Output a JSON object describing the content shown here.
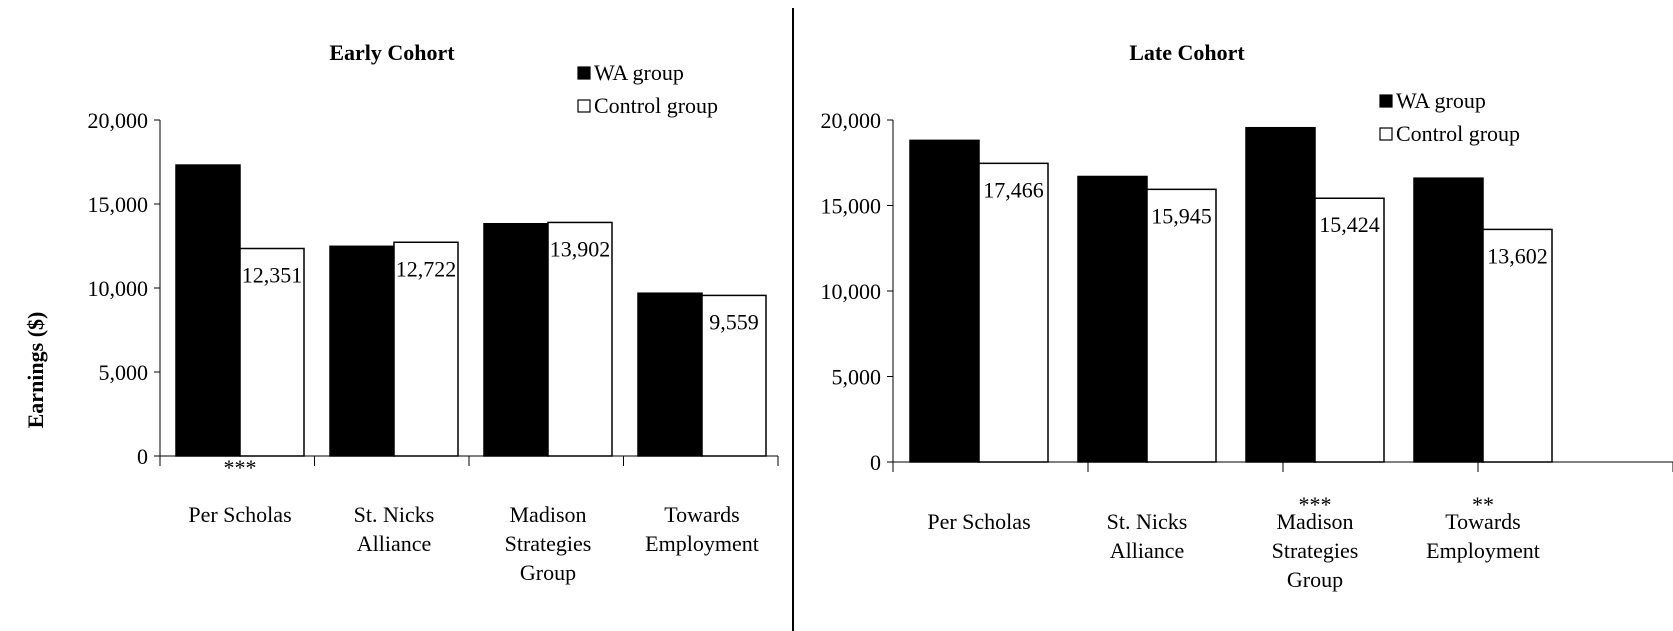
{
  "ylabel": "Earnings ($)",
  "legend": {
    "wa_label": "WA group",
    "control_label": "Control group",
    "wa_color": "#000000",
    "control_color": "#ffffff"
  },
  "chart_data": [
    {
      "type": "bar",
      "title": "Early Cohort",
      "ylabel": "Earnings ($)",
      "ylim": [
        0,
        20000
      ],
      "yticks": [
        "0",
        "5,000",
        "10,000",
        "15,000",
        "20,000"
      ],
      "categories": [
        "Per Scholas",
        "St. Nicks Alliance",
        "Madison Strategies Group",
        "Towards Employment"
      ],
      "category_lines": [
        [
          "Per Scholas"
        ],
        [
          "St. Nicks",
          "Alliance"
        ],
        [
          "Madison",
          "Strategies",
          "Group"
        ],
        [
          "Towards",
          "Employment"
        ]
      ],
      "significance": [
        "***",
        "",
        "",
        ""
      ],
      "series": [
        {
          "name": "WA group",
          "values": [
            17318,
            12482,
            13825,
            9690
          ],
          "labels": [
            "17,318",
            "12,482",
            "13,825",
            "9,690"
          ]
        },
        {
          "name": "Control group",
          "values": [
            12351,
            12722,
            13902,
            9559
          ],
          "labels": [
            "12,351",
            "12,722",
            "13,902",
            "9,559"
          ]
        }
      ]
    },
    {
      "type": "bar",
      "title": "Late Cohort",
      "ylim": [
        0,
        20000
      ],
      "yticks": [
        "0",
        "5,000",
        "10,000",
        "15,000",
        "20,000"
      ],
      "categories": [
        "Per Scholas",
        "St. Nicks Alliance",
        "Madison Strategies Group",
        "Towards Employment"
      ],
      "category_lines": [
        [
          "Per Scholas"
        ],
        [
          "St. Nicks",
          "Alliance"
        ],
        [
          "Madison",
          "Strategies",
          "Group"
        ],
        [
          "Towards",
          "Employment"
        ]
      ],
      "significance": [
        "",
        "",
        "***",
        "**"
      ],
      "series": [
        {
          "name": "WA group",
          "values": [
            18809,
            16697,
            19549,
            16598
          ],
          "labels": [
            "18,809",
            "16,697",
            "19,549",
            "16,598"
          ]
        },
        {
          "name": "Control group",
          "values": [
            17466,
            15945,
            15424,
            13602
          ],
          "labels": [
            "17,466",
            "15,945",
            "15,424",
            "13,602"
          ]
        }
      ]
    }
  ]
}
